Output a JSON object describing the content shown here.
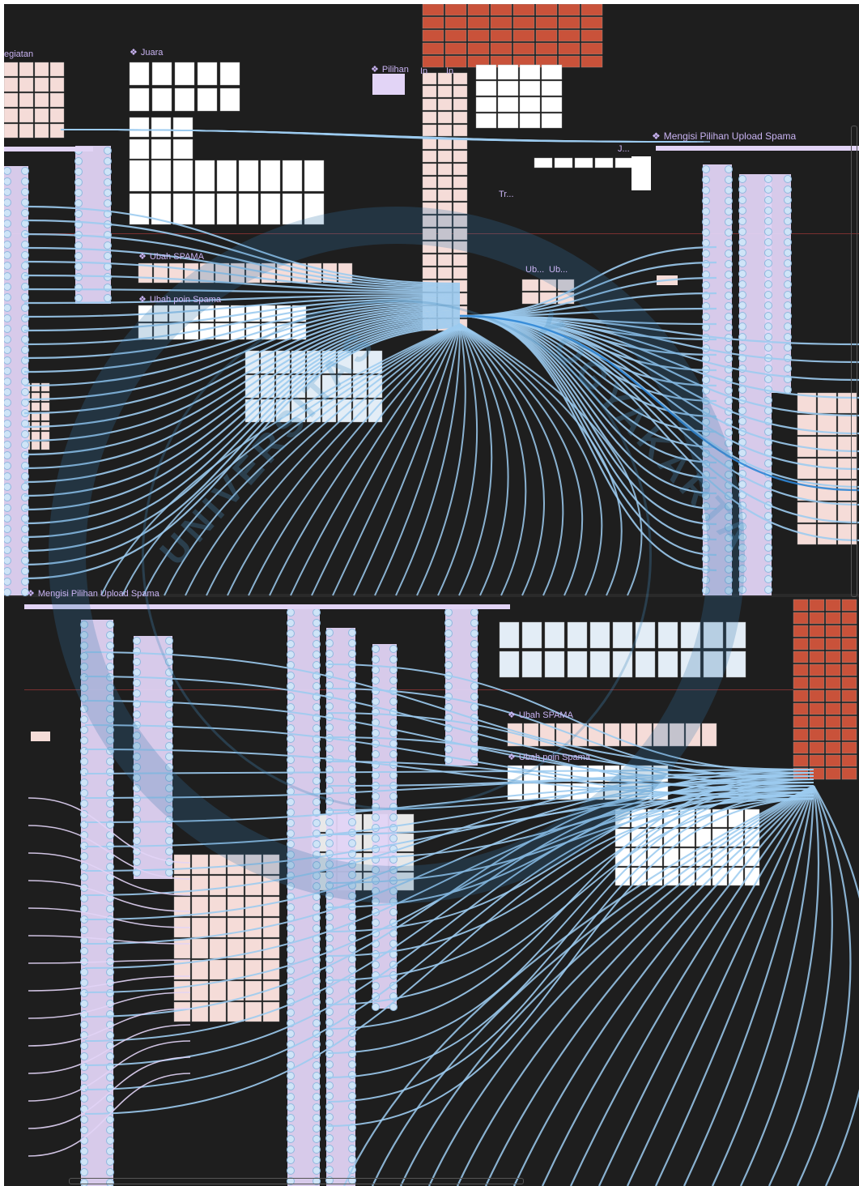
{
  "canvas": {
    "background": "#1e1e1e",
    "accent_wire": "#9ccbf0",
    "accent_wire_dark": "#2f86d6",
    "flow_lilac": "#e2d4f6",
    "node_fill": "#cfe4f7",
    "frame_pink": "#f5dcd8",
    "frame_red": "#c9523a",
    "label_color": "#c9b3f2"
  },
  "flow_labels": {
    "kegiatan": "egiatan",
    "juara": "Juara",
    "pilihan": "Pilihan",
    "pilihan_extra_1": "In",
    "pilihan_extra_2": "In",
    "mengisi_top": "Mengisi Pilihan Upload Spama",
    "ubah_spama_top": "Ubah SPAMA",
    "ubah_poin_top": "Ubah poin Spama",
    "short_j": "J...",
    "short_tr": "Tr...",
    "short_ub1": "Ub...",
    "short_ub2": "Ub...",
    "mengisi_bottom": "Mengisi Pilihan Upload Spama",
    "ubah_spama_bottom": "Ubah SPAMA",
    "ubah_poin_bottom": "Ubah poin Spama"
  },
  "watermark": {
    "line1": "UNIVERSITAS",
    "line2": "YOGYAKARTA"
  },
  "icons": {
    "flow_marker": "diamond-component-icon"
  }
}
